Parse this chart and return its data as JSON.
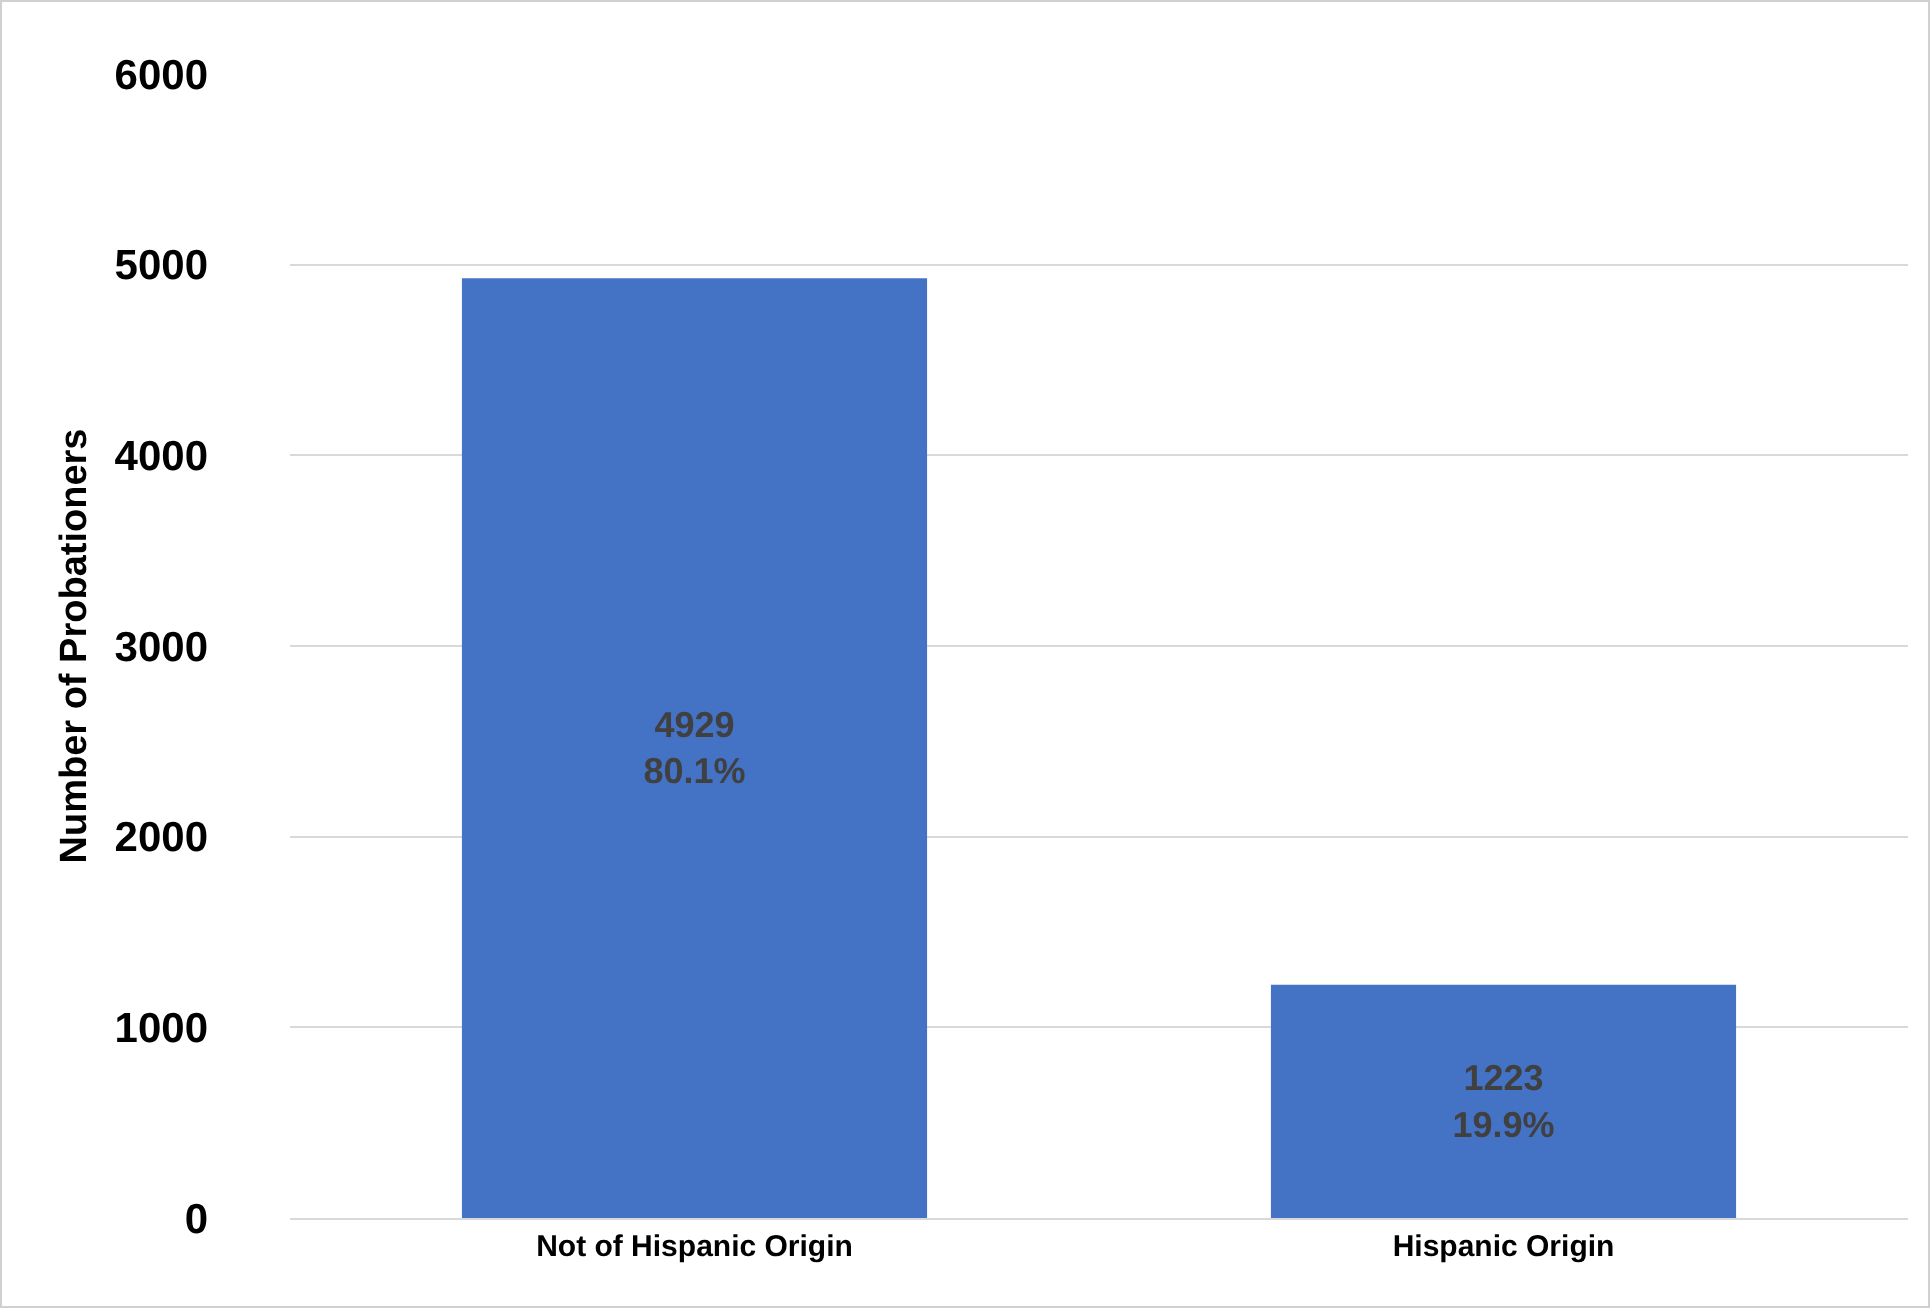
{
  "chart_data": {
    "type": "bar",
    "ylabel": "Number of Probationers",
    "categories": [
      "Not of Hispanic Origin",
      "Hispanic Origin"
    ],
    "values": [
      4929,
      1223
    ],
    "color": "#4472c4",
    "value_labels": [
      "4929\n80.1%",
      "1223\n19.9%"
    ],
    "ylim": [
      0,
      6000
    ],
    "yticks": [
      0,
      1000,
      2000,
      3000,
      4000,
      5000,
      6000
    ],
    "grid": "y"
  }
}
